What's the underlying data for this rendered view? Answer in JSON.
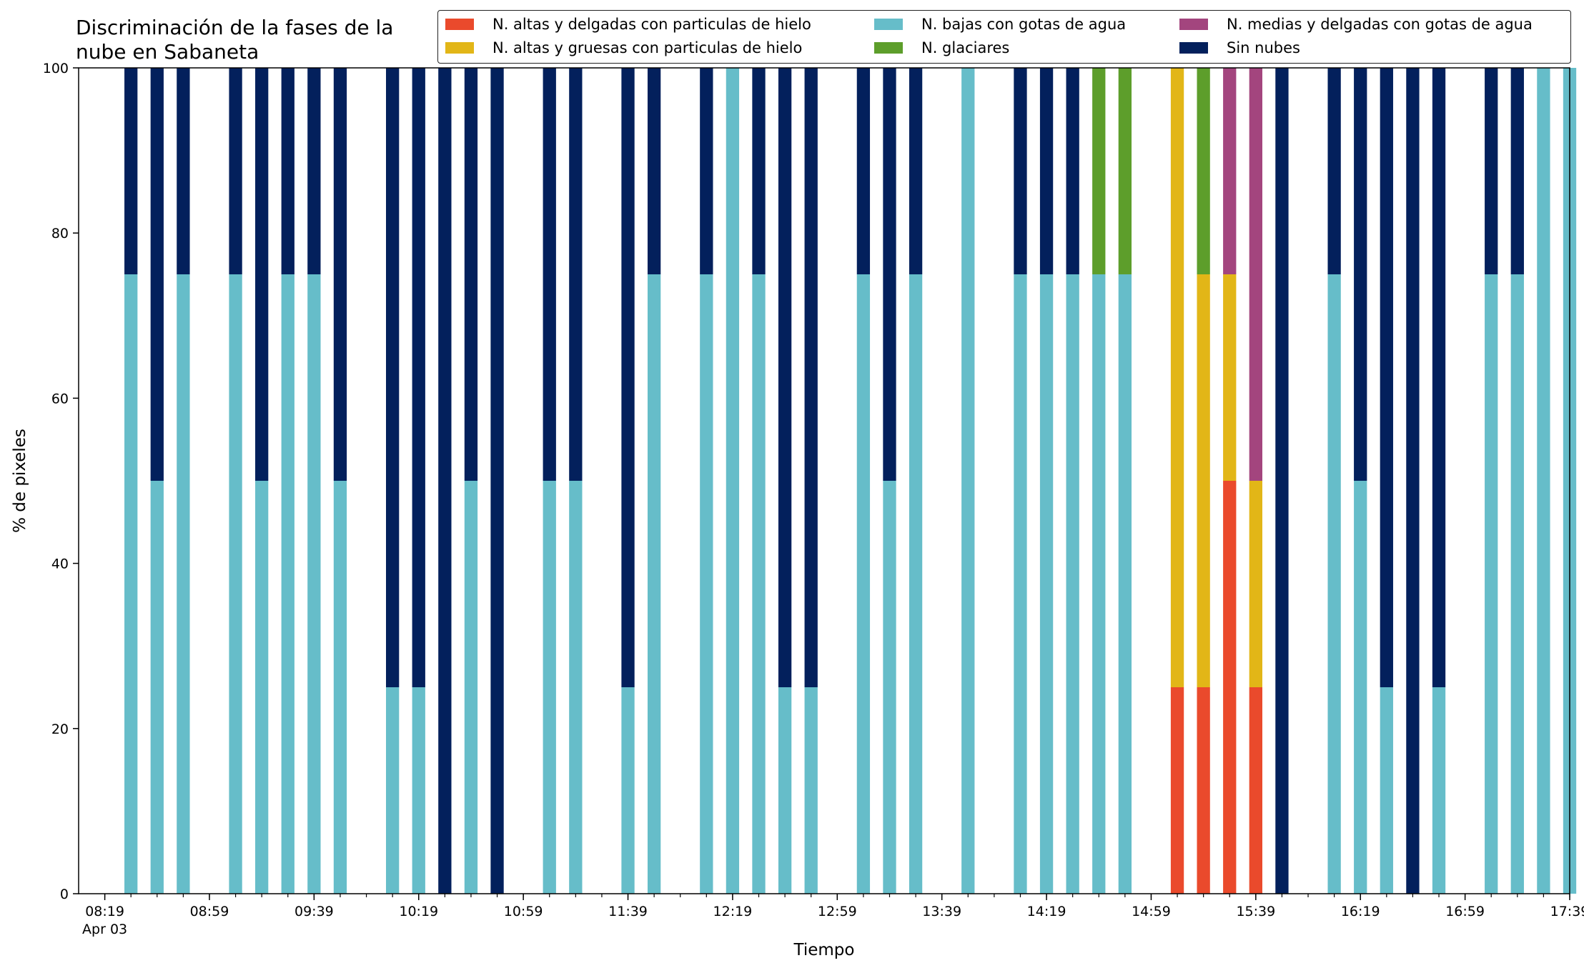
{
  "chart_data": {
    "type": "bar",
    "stacked": true,
    "title": "Discriminación de la fases de la\nnube en Sabaneta",
    "xlabel": "Tiempo",
    "ylabel": "% de pixeles",
    "ylim": [
      0,
      100
    ],
    "yticks": [
      "0",
      "20",
      "40",
      "60",
      "80",
      "100"
    ],
    "xticks": [
      "08:19",
      "08:59",
      "09:39",
      "10:19",
      "10:59",
      "11:39",
      "12:19",
      "12:59",
      "13:39",
      "14:19",
      "14:59",
      "15:39",
      "16:19",
      "16:59",
      "17:39"
    ],
    "xtick_sub": "Apr 03",
    "x_start": "08:19",
    "bar_interval_min": 10,
    "grid": false,
    "legend_position": "top-right",
    "x": [
      "08:29",
      "08:39",
      "08:49",
      "09:09",
      "09:19",
      "09:29",
      "09:39",
      "09:49",
      "10:09",
      "10:19",
      "10:29",
      "10:39",
      "10:49",
      "11:09",
      "11:19",
      "11:39",
      "11:49",
      "12:09",
      "12:19",
      "12:29",
      "12:39",
      "12:49",
      "13:09",
      "13:19",
      "13:29",
      "13:49",
      "14:09",
      "14:19",
      "14:29",
      "14:39",
      "14:49",
      "15:09",
      "15:19",
      "15:29",
      "15:39",
      "15:49",
      "16:09",
      "16:19",
      "16:29",
      "16:39",
      "16:49",
      "17:09",
      "17:19",
      "17:29",
      "17:39"
    ],
    "series": [
      {
        "name": "N. altas y delgadas con particulas de hielo",
        "color": "#ea4a2c",
        "values": [
          0,
          0,
          0,
          0,
          0,
          0,
          0,
          0,
          0,
          0,
          0,
          0,
          0,
          0,
          0,
          0,
          0,
          0,
          0,
          0,
          0,
          0,
          0,
          0,
          0,
          0,
          0,
          0,
          0,
          0,
          0,
          25,
          25,
          50,
          25,
          0,
          0,
          0,
          0,
          0,
          0,
          0,
          0,
          0,
          0
        ]
      },
      {
        "name": "N. altas y gruesas con particulas de hielo",
        "color": "#e2b617",
        "values": [
          0,
          0,
          0,
          0,
          0,
          0,
          0,
          0,
          0,
          0,
          0,
          0,
          0,
          0,
          0,
          0,
          0,
          0,
          0,
          0,
          0,
          0,
          0,
          0,
          0,
          0,
          0,
          0,
          0,
          0,
          0,
          75,
          50,
          25,
          25,
          0,
          0,
          0,
          0,
          0,
          0,
          0,
          0,
          0,
          0
        ]
      },
      {
        "name": "N. bajas con gotas de agua",
        "color": "#66bdc9",
        "values": [
          75,
          50,
          75,
          75,
          50,
          75,
          75,
          50,
          25,
          25,
          0,
          50,
          0,
          50,
          50,
          25,
          75,
          75,
          100,
          75,
          25,
          25,
          75,
          50,
          75,
          100,
          75,
          75,
          75,
          75,
          75,
          0,
          0,
          0,
          0,
          0,
          75,
          50,
          25,
          0,
          25,
          75,
          75,
          100,
          100
        ]
      },
      {
        "name": "N. glaciares",
        "color": "#5d9e2b",
        "values": [
          0,
          0,
          0,
          0,
          0,
          0,
          0,
          0,
          0,
          0,
          0,
          0,
          0,
          0,
          0,
          0,
          0,
          0,
          0,
          0,
          0,
          0,
          0,
          0,
          0,
          0,
          0,
          0,
          0,
          25,
          25,
          0,
          25,
          0,
          0,
          0,
          0,
          0,
          0,
          0,
          0,
          0,
          0,
          0,
          0
        ]
      },
      {
        "name": "N. medias y delgadas con gotas de agua",
        "color": "#a3457e",
        "values": [
          0,
          0,
          0,
          0,
          0,
          0,
          0,
          0,
          0,
          0,
          0,
          0,
          0,
          0,
          0,
          0,
          0,
          0,
          0,
          0,
          0,
          0,
          0,
          0,
          0,
          0,
          0,
          0,
          0,
          0,
          0,
          0,
          0,
          25,
          50,
          0,
          0,
          0,
          0,
          0,
          0,
          0,
          0,
          0,
          0
        ]
      },
      {
        "name": "Sin nubes",
        "color": "#03205c",
        "values": [
          25,
          50,
          25,
          25,
          50,
          25,
          25,
          50,
          75,
          75,
          100,
          50,
          100,
          50,
          50,
          75,
          25,
          25,
          0,
          25,
          75,
          75,
          25,
          50,
          25,
          0,
          25,
          25,
          25,
          0,
          0,
          0,
          0,
          0,
          0,
          100,
          25,
          50,
          75,
          100,
          75,
          25,
          25,
          0,
          0
        ]
      }
    ]
  }
}
